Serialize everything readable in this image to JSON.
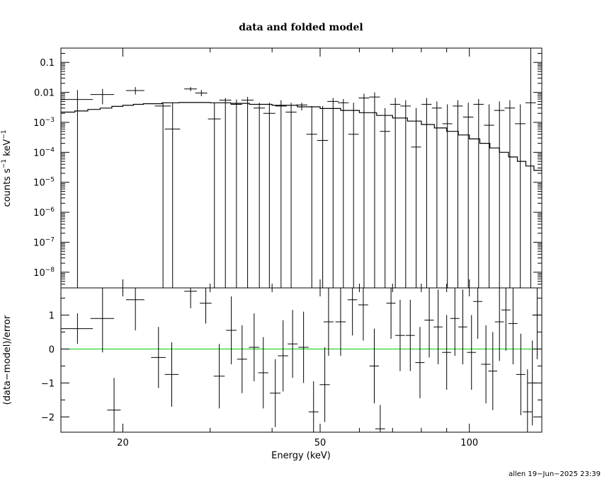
{
  "chart_data": [
    {
      "type": "scatter",
      "panel": "top",
      "title": "data and folded model",
      "xlabel": "",
      "ylabel_base": "counts s",
      "ylabel_mid": " keV",
      "ylabel_exp": "−1",
      "xscale": "log",
      "yscale": "log",
      "xlim": [
        15,
        140
      ],
      "ylim": [
        3e-09,
        0.3
      ],
      "yticks": [
        {
          "value": 0.1,
          "label": "0.1"
        },
        {
          "value": 0.01,
          "label": "0.01"
        },
        {
          "value": 0.001,
          "mant": "10",
          "exp": "−3"
        },
        {
          "value": 0.0001,
          "mant": "10",
          "exp": "−4"
        },
        {
          "value": 1e-05,
          "mant": "10",
          "exp": "−5"
        },
        {
          "value": 1e-06,
          "mant": "10",
          "exp": "−6"
        },
        {
          "value": 1e-07,
          "mant": "10",
          "exp": "−7"
        },
        {
          "value": 1e-08,
          "mant": "10",
          "exp": "−8"
        }
      ],
      "series": [
        {
          "kind": "data",
          "x": [
            16.2,
            18.2,
            21.2,
            24.1,
            25.2,
            27.4,
            28.8,
            30.6,
            32.2,
            33.9,
            35.7,
            37.7,
            39.5,
            41.7,
            43.7,
            45.9,
            48.1,
            50.6,
            53.1,
            55.7,
            58.4,
            61.3,
            64.4,
            67.6,
            70.9,
            74.4,
            78.1,
            82.0,
            86.0,
            90.3,
            94.8,
            99.5,
            104.4,
            109.6,
            115.0,
            120.7,
            126.7,
            133.0
          ],
          "y": [
            0.0058,
            0.0085,
            0.0115,
            0.0035,
            0.0006,
            0.013,
            0.0095,
            0.0013,
            0.0055,
            0.004,
            0.0055,
            0.003,
            0.002,
            0.0035,
            0.0022,
            0.0038,
            0.0004,
            0.00025,
            0.005,
            0.0045,
            0.0004,
            0.0065,
            0.007,
            0.0005,
            0.004,
            0.0035,
            0.00015,
            0.004,
            0.003,
            0.0009,
            0.0035,
            0.0015,
            0.004,
            0.0008,
            0.0025,
            0.003,
            0.0009,
            0.0045
          ],
          "xerr": [
            1.2,
            1.0,
            0.9,
            0.9,
            0.9,
            0.8,
            0.8,
            0.9,
            0.9,
            0.9,
            1.0,
            1.0,
            1.1,
            1.1,
            1.1,
            1.2,
            1.2,
            1.3,
            1.4,
            1.4,
            1.4,
            1.5,
            1.6,
            1.6,
            1.7,
            1.8,
            1.8,
            1.9,
            2.0,
            2.1,
            2.2,
            2.4,
            2.5,
            2.6,
            2.8,
            2.9,
            3.1,
            3.2
          ],
          "ylo": [
            3e-09,
            0.004,
            0.0085,
            3e-09,
            3e-09,
            0.011,
            0.0075,
            3e-09,
            3e-09,
            3e-09,
            3e-09,
            3e-09,
            3e-09,
            3e-09,
            3e-09,
            0.0025,
            3e-09,
            3e-09,
            3e-09,
            3e-09,
            3e-09,
            3e-09,
            3e-09,
            3e-09,
            3e-09,
            3e-09,
            3e-09,
            3e-09,
            3e-09,
            3e-09,
            3e-09,
            3e-09,
            3e-09,
            3e-09,
            3e-09,
            3e-09,
            3e-09,
            3e-09
          ],
          "yhi": [
            0.012,
            0.013,
            0.015,
            0.0045,
            0.0045,
            0.015,
            0.012,
            0.0045,
            0.0065,
            0.0058,
            0.007,
            0.0045,
            0.0045,
            0.0055,
            0.0045,
            0.0045,
            0.0035,
            0.0035,
            0.0065,
            0.006,
            0.0045,
            0.009,
            0.01,
            0.003,
            0.0065,
            0.0055,
            0.003,
            0.0065,
            0.005,
            0.004,
            0.0055,
            0.0045,
            0.006,
            0.004,
            0.005,
            0.0055,
            0.004,
            0.3
          ]
        },
        {
          "kind": "model",
          "x": [
            15.0,
            16.0,
            17.0,
            18.0,
            19.0,
            20.0,
            21.0,
            22.0,
            24.0,
            26.0,
            28.0,
            30.0,
            33.0,
            36.0,
            40.0,
            45.0,
            50.0,
            55.0,
            60.0,
            65.0,
            70.0,
            75.0,
            80.0,
            85.0,
            90.0,
            95.0,
            100.0,
            105.0,
            110.0,
            115.0,
            120.0,
            125.0,
            130.0,
            135.0,
            140.0
          ],
          "y": [
            0.0022,
            0.0024,
            0.0027,
            0.003,
            0.0034,
            0.0037,
            0.004,
            0.0042,
            0.0045,
            0.0046,
            0.0046,
            0.0045,
            0.0043,
            0.004,
            0.0037,
            0.0033,
            0.0029,
            0.0025,
            0.0021,
            0.0017,
            0.0014,
            0.0011,
            0.00085,
            0.00065,
            0.0005,
            0.00038,
            0.00028,
            0.0002,
            0.00014,
            0.0001,
            7e-05,
            5e-05,
            3.5e-05,
            2.5e-05,
            1.9e-05
          ]
        }
      ]
    },
    {
      "type": "scatter",
      "panel": "bottom",
      "xlabel": "Energy (keV)",
      "ylabel": "(data−model)/error",
      "xscale": "log",
      "xlim": [
        15,
        140
      ],
      "ylim": [
        -2.45,
        1.8
      ],
      "xticks": [
        {
          "value": 20,
          "label": "20"
        },
        {
          "value": 50,
          "label": "50"
        },
        {
          "value": 100,
          "label": "100"
        }
      ],
      "yticks": [
        {
          "value": 1,
          "label": "1"
        },
        {
          "value": 0,
          "label": "0"
        },
        {
          "value": -1,
          "label": "−1"
        },
        {
          "value": -2,
          "label": "−2"
        }
      ],
      "zero_line_color": "#00cc00",
      "series": [
        {
          "kind": "residuals",
          "x": [
            16.2,
            18.2,
            19.2,
            21.2,
            23.6,
            25.1,
            27.4,
            29.4,
            31.3,
            33.1,
            34.8,
            36.8,
            38.4,
            40.6,
            42.1,
            44.0,
            46.3,
            48.5,
            51.1,
            52.0,
            55.0,
            58.1,
            61.1,
            64.3,
            66.1,
            69.5,
            72.5,
            76.0,
            79.5,
            83.0,
            86.5,
            90.0,
            93.5,
            97.0,
            101.0,
            104.0,
            108.0,
            111.5,
            115.0,
            118.5,
            122.5,
            127.0,
            131.0,
            134.0,
            137.0
          ],
          "y": [
            0.6,
            0.9,
            -1.8,
            1.45,
            -0.25,
            -0.75,
            1.7,
            1.35,
            -0.8,
            0.55,
            -0.3,
            0.05,
            -0.7,
            -1.3,
            -0.2,
            0.15,
            0.05,
            -1.85,
            -1.05,
            0.8,
            0.8,
            1.45,
            1.3,
            -0.5,
            -2.35,
            1.35,
            0.4,
            0.4,
            -0.4,
            0.85,
            0.65,
            -0.1,
            0.9,
            0.65,
            -0.1,
            1.4,
            -0.45,
            -0.65,
            0.8,
            1.15,
            0.75,
            -0.75,
            -1.85,
            -1.0,
            1.0
          ],
          "xerr": [
            1.2,
            1.0,
            0.6,
            0.9,
            0.8,
            0.8,
            0.8,
            0.8,
            0.8,
            0.8,
            0.8,
            0.9,
            0.9,
            1.0,
            1.0,
            1.0,
            1.1,
            1.1,
            1.2,
            1.2,
            1.3,
            1.3,
            1.4,
            1.4,
            1.5,
            1.5,
            1.6,
            1.6,
            1.7,
            1.8,
            1.8,
            1.9,
            2.0,
            2.0,
            2.1,
            2.2,
            2.3,
            2.3,
            2.4,
            2.5,
            2.6,
            2.7,
            2.8,
            2.9,
            3.0
          ],
          "yerr": [
            0.45,
            1.0,
            0.95,
            0.9,
            0.9,
            0.95,
            0.5,
            0.6,
            0.95,
            1.0,
            1.0,
            1.0,
            1.05,
            1.0,
            1.05,
            1.0,
            1.05,
            0.9,
            1.1,
            1.0,
            1.0,
            1.05,
            1.05,
            1.1,
            0.7,
            1.05,
            1.05,
            1.05,
            1.05,
            1.1,
            1.1,
            1.1,
            1.1,
            1.1,
            1.1,
            1.1,
            1.15,
            1.15,
            1.15,
            1.2,
            1.2,
            1.2,
            1.25,
            1.25,
            1.3
          ]
        }
      ]
    }
  ],
  "footer_stamp": "allen 19−Jun−2025 23:39"
}
